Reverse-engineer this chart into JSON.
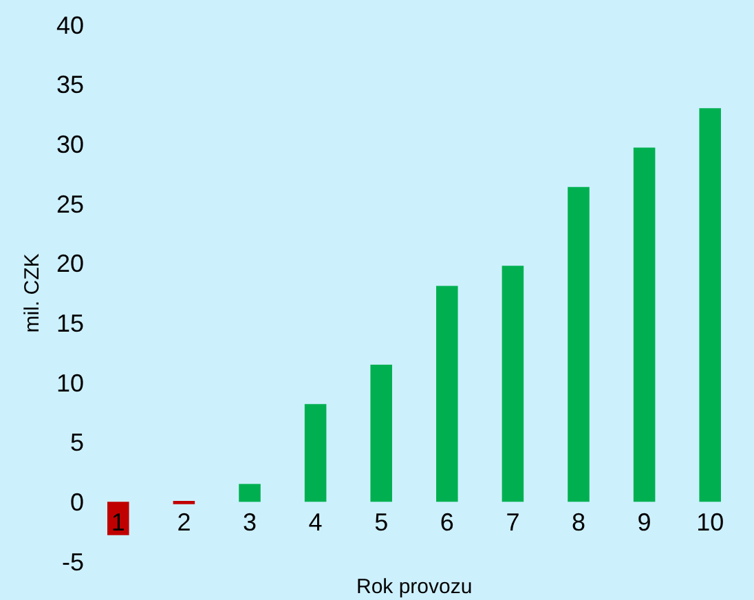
{
  "chart_data": {
    "type": "bar",
    "xlabel": "Rok provozu",
    "ylabel": "mil. CZK",
    "categories": [
      "1",
      "2",
      "3",
      "4",
      "5",
      "6",
      "7",
      "8",
      "9",
      "10"
    ],
    "values": [
      -2.8,
      -0.2,
      1.5,
      8.2,
      11.5,
      18.1,
      19.8,
      26.4,
      29.7,
      33.0
    ],
    "colors": [
      "#c00000",
      "#c00000",
      "#00b050",
      "#00b050",
      "#00b050",
      "#00b050",
      "#00b050",
      "#00b050",
      "#00b050",
      "#00b050"
    ],
    "ylim": [
      -5,
      40
    ],
    "yticks": [
      -5,
      0,
      5,
      10,
      15,
      20,
      25,
      30,
      35,
      40
    ],
    "grid": false
  }
}
